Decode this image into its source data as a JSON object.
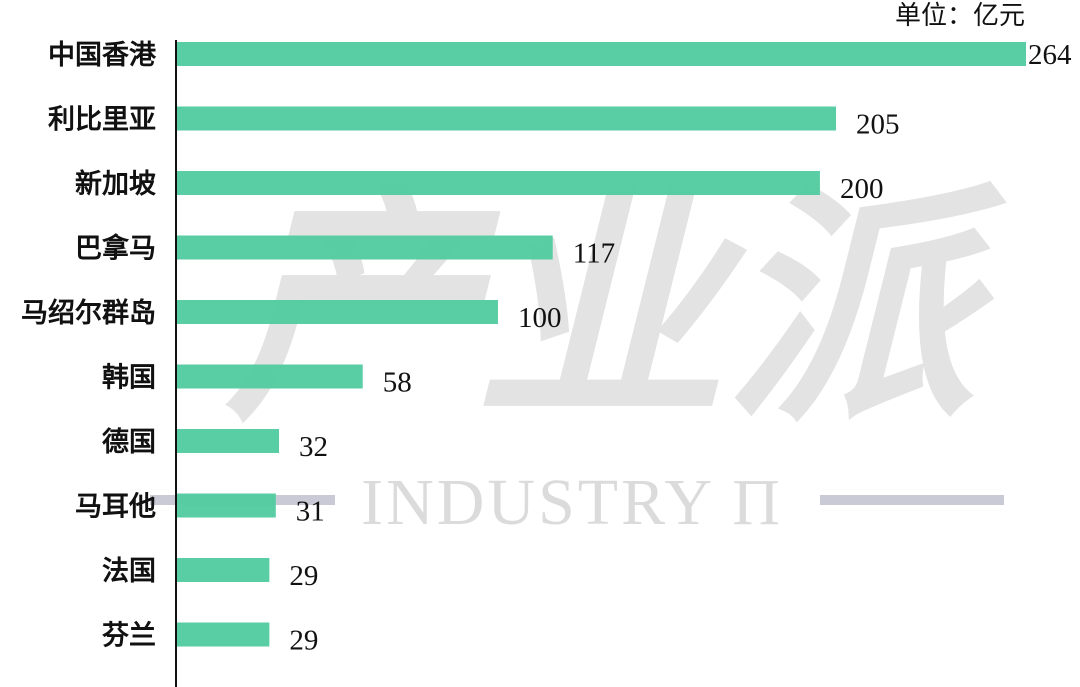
{
  "unit_label": "单位：亿元",
  "watermark": {
    "cn": "产业派",
    "en": "INDUSTRY Π"
  },
  "colors": {
    "bar": "#52cca0",
    "axis": "#111111",
    "watermark_line": "#b8b8c8"
  },
  "chart_data": {
    "type": "bar",
    "orientation": "horizontal",
    "categories": [
      "中国香港",
      "利比里亚",
      "新加坡",
      "巴拿马",
      "马绍尔群岛",
      "韩国",
      "德国",
      "马耳他",
      "法国",
      "芬兰"
    ],
    "values": [
      264,
      205,
      200,
      117,
      100,
      58,
      32,
      31,
      29,
      29
    ],
    "title": "",
    "xlabel": "",
    "ylabel": "",
    "unit": "单位：亿元",
    "xlim": [
      0,
      264
    ],
    "grid": false,
    "legend": "none",
    "data_labels": true
  }
}
